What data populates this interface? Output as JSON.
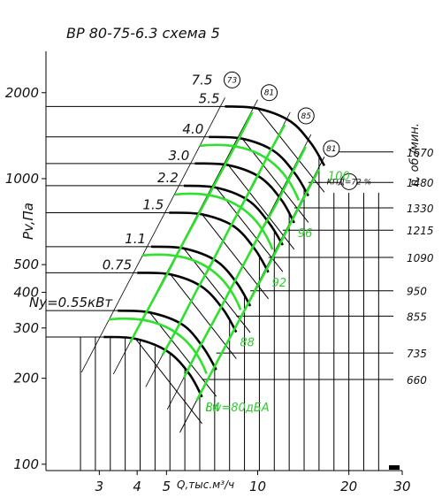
{
  "chart_data": {
    "type": "line",
    "title": "ВР 80-75-6.3  схема 5",
    "xlabel": "Q,тыс.м³/ч",
    "ylabel": "Pv,Па",
    "right_axis_label": "n, об./мин.",
    "xlim": [
      2.0,
      30.0
    ],
    "ylim": [
      95,
      2600
    ],
    "x_scale": "log",
    "y_scale": "log",
    "grid": true,
    "x_ticks": [
      {
        "value": 3,
        "label": "3"
      },
      {
        "value": 4,
        "label": "4"
      },
      {
        "value": 5,
        "label": "5"
      },
      {
        "value": 10,
        "label": "10"
      },
      {
        "value": 20,
        "label": "20"
      },
      {
        "value": 30,
        "label": "30"
      }
    ],
    "y_ticks": [
      {
        "value": 100,
        "label": "100"
      },
      {
        "value": 200,
        "label": "200"
      },
      {
        "value": 300,
        "label": "300"
      },
      {
        "value": 400,
        "label": "400"
      },
      {
        "value": 500,
        "label": "500"
      },
      {
        "value": 1000,
        "label": "1000"
      },
      {
        "value": 2000,
        "label": "2000"
      }
    ],
    "rpm_ticks": [
      {
        "label": "1670",
        "pressure": 1240
      },
      {
        "label": "1480",
        "pressure": 970
      },
      {
        "label": "1330",
        "pressure": 790
      },
      {
        "label": "1215",
        "pressure": 660
      },
      {
        "label": "1090",
        "pressure": 530
      },
      {
        "label": "950",
        "pressure": 405
      },
      {
        "label": "855",
        "pressure": 330
      },
      {
        "label": "735",
        "pressure": 245
      },
      {
        "label": "660",
        "pressure": 198
      }
    ],
    "power_labels": [
      {
        "label": "7.5",
        "rpm_index": -1
      },
      {
        "label": "5.5",
        "rpm_index": 0
      },
      {
        "label": "4.0",
        "rpm_index": 1
      },
      {
        "label": "3.0",
        "rpm_index": 2
      },
      {
        "label": "2.2",
        "rpm_index": 3
      },
      {
        "label": "1.5",
        "rpm_index": 4
      },
      {
        "label": "1.1",
        "rpm_index": 5
      },
      {
        "label": "0.75",
        "rpm_index": 6
      },
      {
        "label": "Ny=0.55кВт",
        "rpm_index": 7
      }
    ],
    "efficiency_labels": [
      {
        "label": "73"
      },
      {
        "label": "81"
      },
      {
        "label": "85"
      },
      {
        "label": "81"
      },
      {
        "label": "КПД=72 %"
      }
    ],
    "sound_labels": [
      {
        "label": "100"
      },
      {
        "label": "96"
      },
      {
        "label": "92"
      },
      {
        "label": "88"
      },
      {
        "label": "84"
      },
      {
        "label": "Lw=80дБА"
      }
    ],
    "series": [
      {
        "name": "1670",
        "q": [
          7.8,
          10.0,
          12.8,
          15.0,
          16.6
        ],
        "p": [
          1790,
          1760,
          1590,
          1330,
          1110
        ]
      },
      {
        "name": "1480",
        "q": [
          6.9,
          8.9,
          11.3,
          13.3,
          14.7
        ],
        "p": [
          1400,
          1380,
          1250,
          1040,
          870
        ]
      },
      {
        "name": "1330",
        "q": [
          6.2,
          8.0,
          10.2,
          12.0,
          13.2
        ],
        "p": [
          1130,
          1115,
          1010,
          840,
          700
        ]
      },
      {
        "name": "1215",
        "q": [
          5.7,
          7.3,
          9.3,
          10.9,
          12.1
        ],
        "p": [
          945,
          930,
          840,
          700,
          585
        ]
      },
      {
        "name": "1090",
        "q": [
          5.1,
          6.55,
          8.35,
          9.8,
          10.85
        ],
        "p": [
          760,
          750,
          680,
          565,
          470
        ]
      },
      {
        "name": "950",
        "q": [
          4.45,
          5.7,
          7.3,
          8.55,
          9.45
        ],
        "p": [
          578,
          570,
          515,
          430,
          358
        ]
      },
      {
        "name": "855",
        "q": [
          4.0,
          5.15,
          6.55,
          7.7,
          8.5
        ],
        "p": [
          468,
          462,
          418,
          348,
          290
        ]
      },
      {
        "name": "735",
        "q": [
          3.45,
          4.4,
          5.65,
          6.6,
          7.3
        ],
        "p": [
          345,
          340,
          308,
          257,
          214
        ]
      },
      {
        "name": "660",
        "q": [
          3.1,
          3.95,
          5.05,
          5.95,
          6.55
        ],
        "p": [
          279,
          275,
          248,
          207,
          172
        ]
      }
    ]
  }
}
